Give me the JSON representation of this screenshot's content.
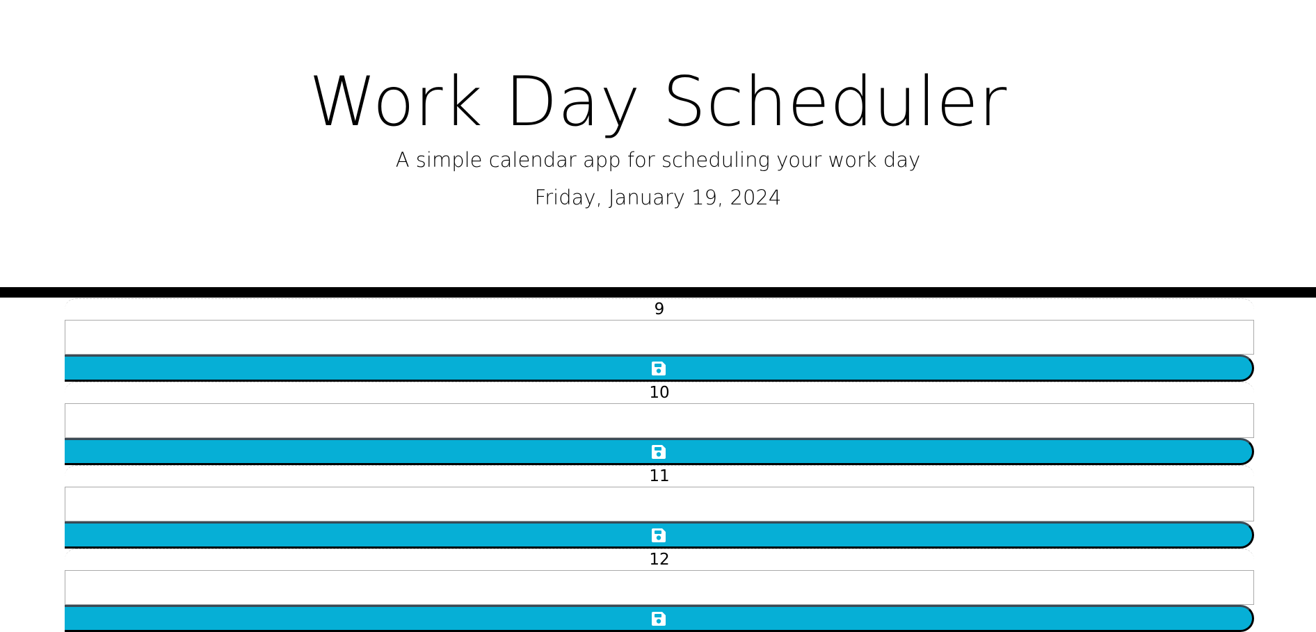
{
  "header": {
    "title": "Work Day Scheduler",
    "subtitle": "A simple calendar app for scheduling your work day",
    "current_day": "Friday, January 19, 2024"
  },
  "schedule": {
    "blocks": [
      {
        "hour": "9",
        "text": "",
        "save_icon": "floppy-disk-icon"
      },
      {
        "hour": "10",
        "text": "",
        "save_icon": "floppy-disk-icon"
      },
      {
        "hour": "11",
        "text": "",
        "save_icon": "floppy-disk-icon"
      },
      {
        "hour": "12",
        "text": "",
        "save_icon": "floppy-disk-icon"
      }
    ]
  },
  "colors": {
    "save_button": "#06afd6",
    "divider": "#000000",
    "background": "#ffffff"
  }
}
